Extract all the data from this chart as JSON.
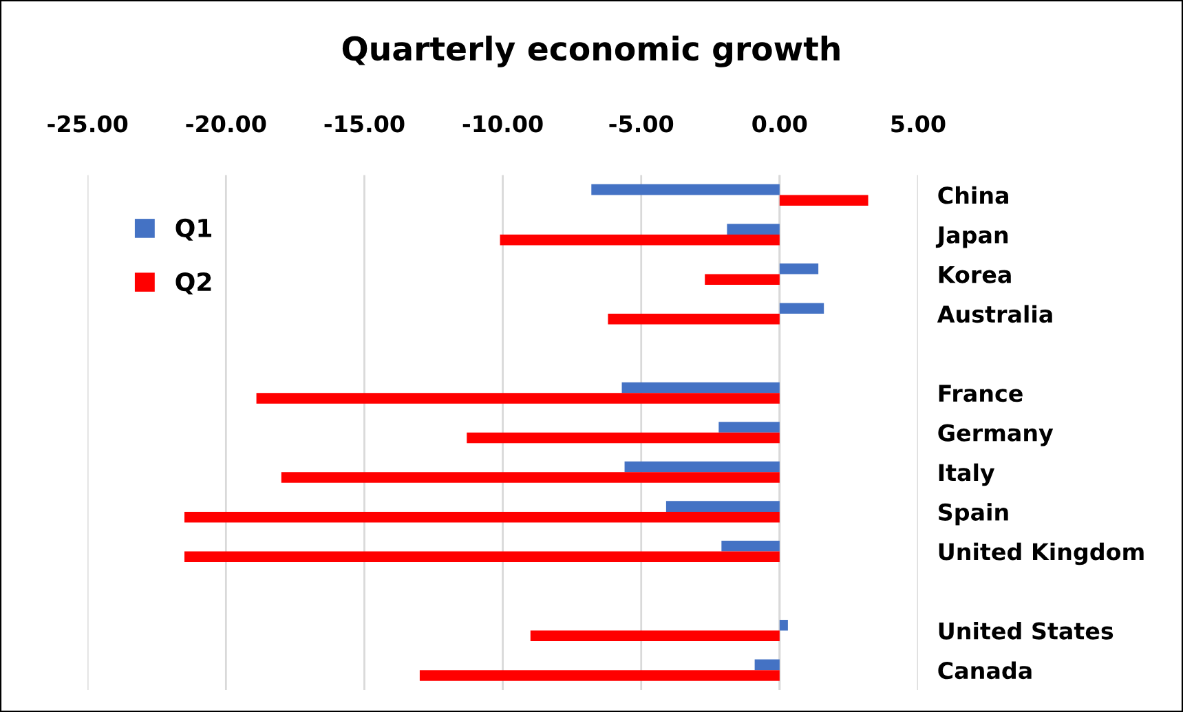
{
  "chart_data": {
    "type": "bar",
    "orientation": "horizontal",
    "title": "Quarterly economic growth",
    "categories": [
      "China",
      "Japan",
      "Korea",
      "Australia",
      null,
      "France",
      "Germany",
      "Italy",
      "Spain",
      "United Kingdom",
      null,
      "United States",
      "Canada"
    ],
    "series": [
      {
        "name": "Q1",
        "color": "#4472c4",
        "values": [
          -6.8,
          -1.9,
          1.4,
          1.6,
          null,
          -5.7,
          -2.2,
          -5.6,
          -4.1,
          -2.1,
          null,
          0.3,
          -0.9
        ]
      },
      {
        "name": "Q2",
        "color": "#ff0000",
        "values": [
          3.2,
          -10.1,
          -2.7,
          -6.2,
          null,
          -18.9,
          -11.3,
          -18.0,
          -21.5,
          -21.5,
          null,
          -9.0,
          -13.0
        ]
      }
    ],
    "xlim": [
      -25,
      5
    ],
    "xticks": [
      {
        "value": -25,
        "label": "-25.00"
      },
      {
        "value": -20,
        "label": "-20.00"
      },
      {
        "value": -15,
        "label": "-15.00"
      },
      {
        "value": -10,
        "label": "-10.00"
      },
      {
        "value": -5,
        "label": "-5.00"
      },
      {
        "value": 0,
        "label": "0.00"
      },
      {
        "value": 5,
        "label": "5.00"
      }
    ],
    "grid": "x",
    "legend": "top left"
  }
}
